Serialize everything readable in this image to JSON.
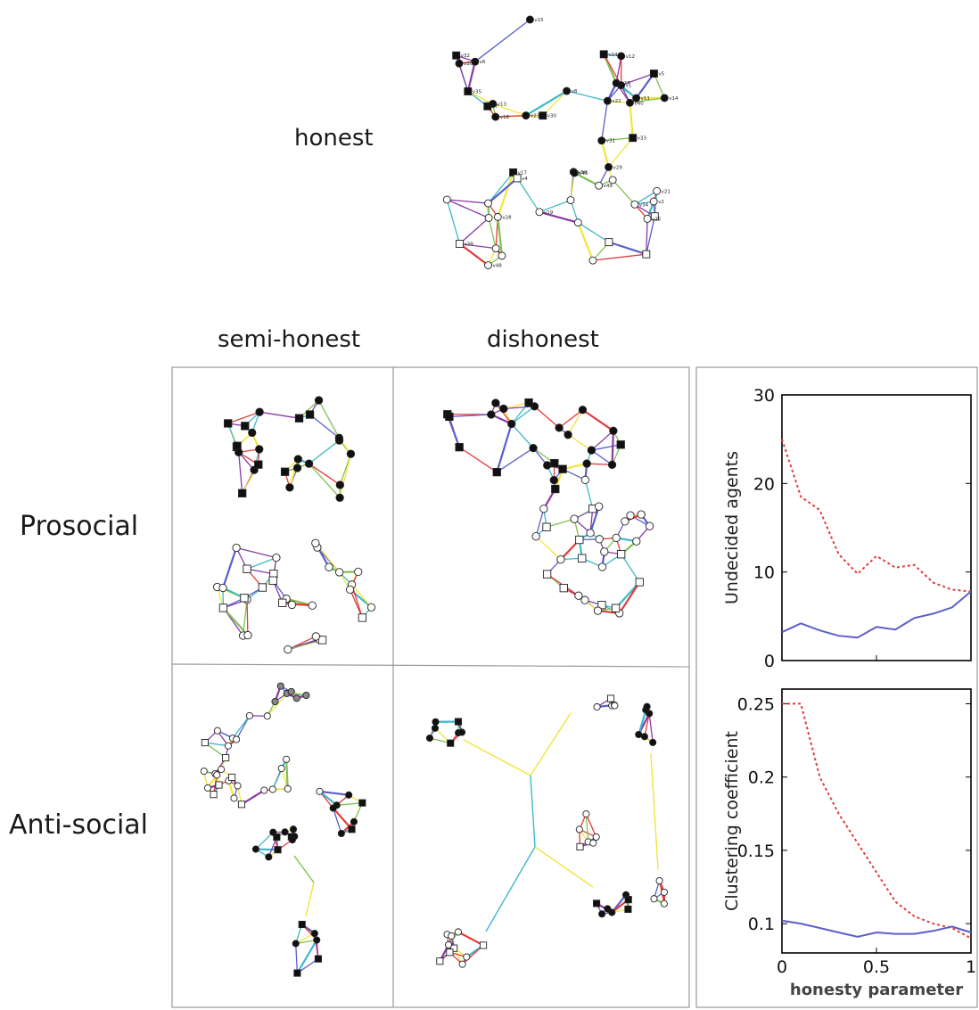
{
  "labels": {
    "honest": "honest",
    "semi_honest": "semi-honest",
    "dishonest": "dishonest",
    "prosocial": "Prosocial",
    "anti_social": "Anti-social"
  },
  "node_labels": [
    "v11",
    "v30",
    "v24",
    "v35",
    "v7",
    "v50",
    "v31",
    "v32",
    "v23",
    "v45",
    "v6",
    "v13",
    "v17",
    "v22",
    "v20",
    "v40",
    "v12",
    "v33",
    "v1",
    "v8",
    "v15",
    "v27",
    "v29",
    "v5",
    "v14",
    "v18",
    "v19",
    "v2",
    "v48",
    "v25",
    "v34",
    "v4",
    "v49",
    "v21",
    "v39",
    "v28"
  ],
  "edge_colors": [
    "#e33b3b",
    "#5a5fc8",
    "#8a3aa3",
    "#7fc24f",
    "#f2e43d",
    "#3fb8c9"
  ],
  "chart_data": [
    {
      "type": "line",
      "xlim": [
        0,
        1
      ],
      "ylim": [
        0,
        30
      ],
      "x_ticks": [
        "0",
        "0.5",
        "1"
      ],
      "y_ticks": [
        "0",
        "10",
        "20",
        "30"
      ],
      "xlabel": "",
      "ylabel": "Undecided agents",
      "series": [
        {
          "color": "#e33b3b",
          "style": "dotted",
          "x": [
            0,
            0.1,
            0.2,
            0.3,
            0.4,
            0.5,
            0.6,
            0.7,
            0.8,
            0.9,
            1.0
          ],
          "y": [
            25,
            18.5,
            17,
            12,
            9.8,
            11.8,
            10.5,
            10.8,
            8.8,
            8,
            7.8
          ]
        },
        {
          "color": "#5a5fc8",
          "style": "solid",
          "x": [
            0,
            0.1,
            0.2,
            0.3,
            0.4,
            0.5,
            0.6,
            0.7,
            0.8,
            0.9,
            1.0
          ],
          "y": [
            3.2,
            4.2,
            3.4,
            2.8,
            2.6,
            3.8,
            3.5,
            4.8,
            5.3,
            6,
            7.8
          ]
        }
      ]
    },
    {
      "type": "line",
      "xlim": [
        0,
        1
      ],
      "ylim": [
        0.08,
        0.26
      ],
      "x_ticks": [
        "0",
        "0.5",
        "1"
      ],
      "y_ticks": [
        "0.1",
        "0.15",
        "0.2",
        "0.25"
      ],
      "xlabel": "honesty parameter",
      "ylabel": "Clustering coefficient",
      "series": [
        {
          "color": "#e33b3b",
          "style": "dotted",
          "x": [
            0,
            0.1,
            0.2,
            0.3,
            0.4,
            0.5,
            0.6,
            0.7,
            0.8,
            0.9,
            1.0
          ],
          "y": [
            0.25,
            0.25,
            0.2,
            0.175,
            0.155,
            0.135,
            0.115,
            0.105,
            0.1,
            0.097,
            0.09
          ]
        },
        {
          "color": "#5a5fc8",
          "style": "solid",
          "x": [
            0,
            0.1,
            0.2,
            0.3,
            0.4,
            0.5,
            0.6,
            0.7,
            0.8,
            0.9,
            1.0
          ],
          "y": [
            0.102,
            0.1,
            0.097,
            0.094,
            0.091,
            0.094,
            0.093,
            0.093,
            0.095,
            0.098,
            0.094
          ]
        }
      ]
    }
  ]
}
